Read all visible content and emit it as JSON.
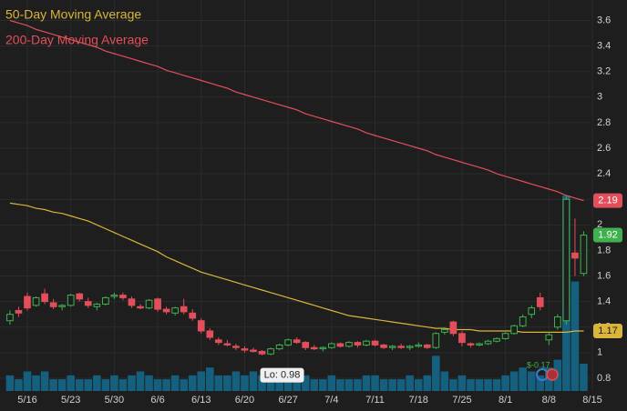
{
  "chart_data": {
    "type": "candlestick",
    "categories": [
      null,
      null,
      "5/16",
      null,
      null,
      null,
      null,
      "5/23",
      null,
      null,
      null,
      null,
      "5/30",
      null,
      null,
      null,
      null,
      "6/6",
      null,
      null,
      null,
      null,
      "6/13",
      null,
      null,
      null,
      null,
      "6/20",
      null,
      null,
      null,
      null,
      "6/27",
      null,
      null,
      null,
      null,
      "7/4",
      null,
      null,
      null,
      null,
      "7/11",
      null,
      null,
      null,
      null,
      "7/18",
      null,
      null,
      null,
      null,
      "7/25",
      null,
      null,
      null,
      null,
      "8/1",
      null,
      null,
      null,
      null,
      "8/8",
      null,
      null,
      null,
      null,
      "8/15"
    ],
    "open": [
      1.25,
      1.33,
      1.44,
      1.37,
      1.46,
      1.39,
      1.36,
      1.37,
      1.46,
      1.4,
      1.36,
      1.38,
      1.44,
      1.45,
      1.42,
      1.36,
      1.35,
      1.42,
      1.34,
      1.31,
      1.36,
      1.31,
      1.25,
      1.17,
      1.1,
      1.07,
      1.05,
      1.03,
      1.02,
      1.01,
      0.99,
      1.03,
      1.06,
      1.1,
      1.08,
      1.04,
      1.03,
      1.04,
      1.07,
      1.05,
      1.08,
      1.06,
      1.09,
      1.06,
      1.04,
      1.05,
      1.04,
      1.05,
      1.06,
      1.04,
      1.16,
      1.24,
      1.15,
      1.07,
      1.06,
      1.07,
      1.09,
      1.11,
      1.15,
      1.21,
      1.3,
      1.43,
      1.1,
      1.2,
      1.25,
      1.78,
      1.62,
      null
    ],
    "high": [
      1.33,
      1.36,
      1.47,
      1.44,
      1.5,
      1.42,
      1.38,
      1.46,
      1.47,
      1.43,
      1.39,
      1.44,
      1.47,
      1.47,
      1.44,
      1.38,
      1.42,
      1.43,
      1.36,
      1.36,
      1.42,
      1.34,
      1.27,
      1.19,
      1.12,
      1.1,
      1.07,
      1.05,
      1.04,
      1.02,
      1.04,
      1.07,
      1.11,
      1.12,
      1.09,
      1.06,
      1.05,
      1.08,
      1.08,
      1.09,
      1.09,
      1.1,
      1.1,
      1.07,
      1.06,
      1.07,
      1.06,
      1.08,
      1.07,
      1.16,
      1.2,
      1.25,
      1.17,
      1.08,
      1.08,
      1.1,
      1.12,
      1.16,
      1.22,
      1.3,
      1.37,
      1.47,
      1.16,
      1.3,
      2.22,
      2.05,
      1.95,
      null
    ],
    "low": [
      1.22,
      1.28,
      1.33,
      1.36,
      1.38,
      1.34,
      1.33,
      1.36,
      1.4,
      1.35,
      1.33,
      1.37,
      1.42,
      1.41,
      1.35,
      1.34,
      1.34,
      1.32,
      1.3,
      1.29,
      1.3,
      1.25,
      1.15,
      1.1,
      1.06,
      1.05,
      1.02,
      1.0,
      1.0,
      0.98,
      0.98,
      1.02,
      1.05,
      1.07,
      1.02,
      1.02,
      1.01,
      1.03,
      1.04,
      1.04,
      1.04,
      1.05,
      1.05,
      1.03,
      1.02,
      1.03,
      1.02,
      1.04,
      1.03,
      1.03,
      1.14,
      1.13,
      1.05,
      1.04,
      1.05,
      1.06,
      1.08,
      1.1,
      1.14,
      1.2,
      1.27,
      1.33,
      1.06,
      1.18,
      1.22,
      1.6,
      1.6,
      null
    ],
    "close": [
      1.3,
      1.31,
      1.35,
      1.43,
      1.4,
      1.36,
      1.37,
      1.45,
      1.42,
      1.37,
      1.38,
      1.43,
      1.45,
      1.43,
      1.37,
      1.35,
      1.41,
      1.34,
      1.32,
      1.35,
      1.32,
      1.27,
      1.17,
      1.12,
      1.08,
      1.06,
      1.04,
      1.02,
      1.01,
      0.99,
      1.03,
      1.06,
      1.1,
      1.08,
      1.04,
      1.03,
      1.04,
      1.07,
      1.05,
      1.08,
      1.06,
      1.09,
      1.06,
      1.04,
      1.05,
      1.04,
      1.05,
      1.06,
      1.04,
      1.15,
      1.18,
      1.15,
      1.08,
      1.06,
      1.07,
      1.09,
      1.11,
      1.15,
      1.21,
      1.28,
      1.35,
      1.36,
      1.14,
      1.28,
      2.2,
      1.74,
      1.92,
      null
    ],
    "volume": [
      4,
      3,
      5,
      4,
      5,
      3,
      3,
      4,
      3,
      3,
      4,
      3,
      4,
      3,
      4,
      5,
      4,
      3,
      3,
      4,
      3,
      4,
      5,
      6,
      4,
      4,
      5,
      4,
      5,
      4,
      3,
      4,
      4,
      3,
      4,
      3,
      3,
      4,
      3,
      3,
      3,
      4,
      4,
      3,
      3,
      3,
      4,
      3,
      4,
      9,
      5,
      3,
      4,
      3,
      3,
      3,
      3,
      4,
      5,
      6,
      5,
      4,
      6,
      8,
      50,
      28,
      7,
      null
    ],
    "up_color": "#3fb24f",
    "down_color": "#e24f5a",
    "volume_color": "#15607f",
    "series": [
      {
        "name": "50-Day Moving Average",
        "color": "#d9b53b",
        "values": [
          2.17,
          2.16,
          2.15,
          2.13,
          2.12,
          2.1,
          2.09,
          2.07,
          2.05,
          2.03,
          2.0,
          1.97,
          1.94,
          1.91,
          1.88,
          1.85,
          1.82,
          1.79,
          1.75,
          1.72,
          1.69,
          1.66,
          1.63,
          1.61,
          1.59,
          1.57,
          1.55,
          1.53,
          1.51,
          1.49,
          1.47,
          1.45,
          1.43,
          1.41,
          1.39,
          1.37,
          1.35,
          1.33,
          1.31,
          1.29,
          1.28,
          1.27,
          1.26,
          1.25,
          1.24,
          1.23,
          1.22,
          1.21,
          1.2,
          1.19,
          1.19,
          1.18,
          1.18,
          1.18,
          1.17,
          1.17,
          1.17,
          1.17,
          1.17,
          1.16,
          1.16,
          1.16,
          1.16,
          1.16,
          1.16,
          1.17,
          1.17,
          null
        ]
      },
      {
        "name": "200-Day Moving Average",
        "color": "#e24f5a",
        "values": [
          3.6,
          3.58,
          3.56,
          3.53,
          3.51,
          3.49,
          3.47,
          3.45,
          3.43,
          3.41,
          3.39,
          3.36,
          3.34,
          3.32,
          3.3,
          3.28,
          3.26,
          3.24,
          3.21,
          3.19,
          3.17,
          3.15,
          3.13,
          3.11,
          3.09,
          3.07,
          3.04,
          3.02,
          3.0,
          2.98,
          2.96,
          2.94,
          2.92,
          2.9,
          2.87,
          2.85,
          2.83,
          2.81,
          2.79,
          2.77,
          2.75,
          2.72,
          2.7,
          2.68,
          2.66,
          2.64,
          2.62,
          2.6,
          2.58,
          2.55,
          2.53,
          2.51,
          2.49,
          2.47,
          2.45,
          2.43,
          2.4,
          2.38,
          2.36,
          2.34,
          2.32,
          2.3,
          2.28,
          2.26,
          2.23,
          2.21,
          2.19,
          null
        ]
      }
    ],
    "ylim": [
      0.7,
      3.76
    ],
    "yticks": [
      0.8,
      1,
      1.2,
      1.4,
      1.6,
      1.8,
      2,
      2.2,
      2.4,
      2.6,
      2.8,
      3,
      3.2,
      3.4,
      3.6
    ],
    "grid": true,
    "annotations": [
      "Lo: 0.98",
      "$-0.17"
    ]
  }
}
